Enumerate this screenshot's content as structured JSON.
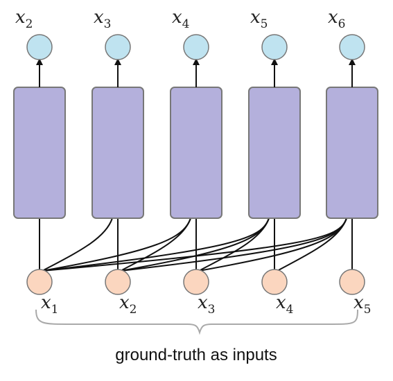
{
  "diagram": {
    "outputs": [
      {
        "var": "x",
        "sub": "2"
      },
      {
        "var": "x",
        "sub": "3"
      },
      {
        "var": "x",
        "sub": "4"
      },
      {
        "var": "x",
        "sub": "5"
      },
      {
        "var": "x",
        "sub": "6"
      }
    ],
    "inputs": [
      {
        "var": "x",
        "sub": "1"
      },
      {
        "var": "x",
        "sub": "2"
      },
      {
        "var": "x",
        "sub": "3"
      },
      {
        "var": "x",
        "sub": "4"
      },
      {
        "var": "x",
        "sub": "5"
      }
    ],
    "caption": "ground-truth as inputs",
    "colors": {
      "output_node": "#bfe3f0",
      "input_node": "#fbd6bf",
      "block": "#b4b0dc",
      "stroke": "#777777",
      "wire": "#111111",
      "brace": "#a9a9a9"
    }
  }
}
